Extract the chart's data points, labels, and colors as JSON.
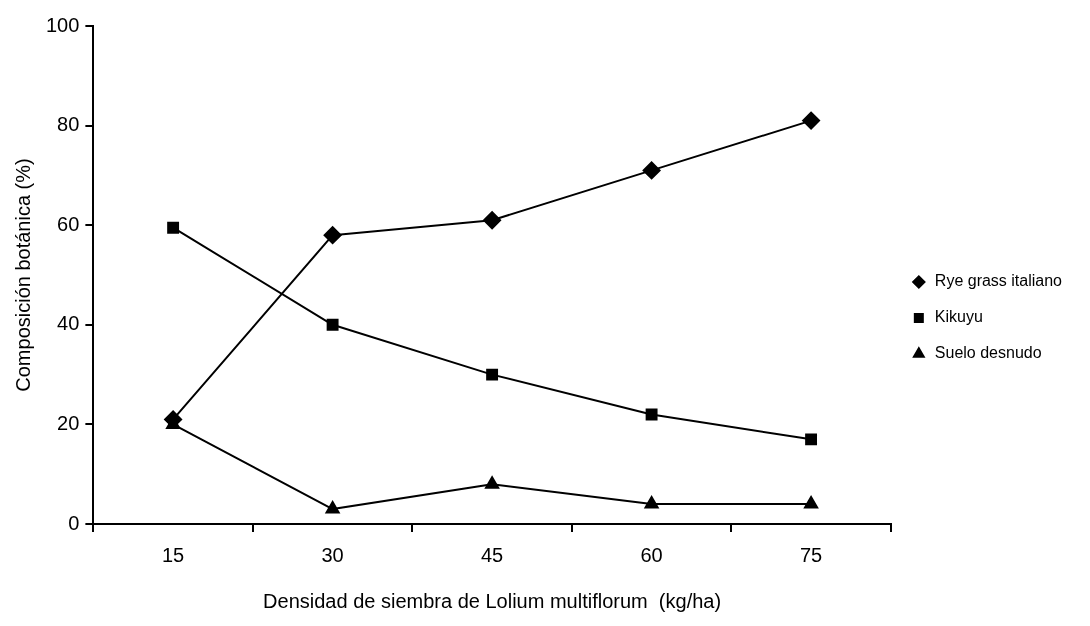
{
  "chart_data": {
    "type": "line",
    "xlabel": "Densidad de siembra de Lolium multiflorum  (kg/ha)",
    "ylabel": "Composición botánica (%)",
    "categories": [
      "15",
      "30",
      "45",
      "60",
      "75"
    ],
    "ylim": [
      0,
      100
    ],
    "yticks": [
      0,
      20,
      40,
      60,
      80,
      100
    ],
    "grid": false,
    "legend": "right",
    "line_style": "solid",
    "series": [
      {
        "name": "Rye grass italiano",
        "color": "#000000",
        "marker": "diamond",
        "values": [
          21,
          58,
          61,
          71,
          81
        ]
      },
      {
        "name": "Kikuyu",
        "color": "#000000",
        "marker": "square",
        "values": [
          59.5,
          40,
          30,
          22,
          17
        ]
      },
      {
        "name": "Suelo desnudo",
        "color": "#000000",
        "marker": "triangle",
        "values": [
          20,
          3,
          8,
          4,
          4
        ]
      }
    ]
  }
}
